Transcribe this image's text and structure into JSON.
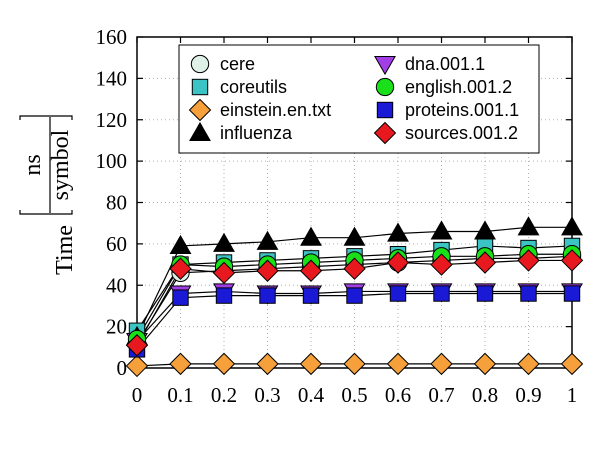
{
  "chart_data": {
    "type": "line",
    "title": "",
    "xlabel": "",
    "ylabel": {
      "prefix": "Time",
      "numerator": "ns",
      "denominator": "symbol"
    },
    "xlim": [
      0,
      1
    ],
    "ylim": [
      0,
      160
    ],
    "xticks": [
      "0",
      "0.1",
      "0.2",
      "0.3",
      "0.4",
      "0.5",
      "0.6",
      "0.7",
      "0.8",
      "0.9",
      "1"
    ],
    "yticks": [
      "0",
      "20",
      "40",
      "60",
      "80",
      "100",
      "120",
      "140",
      "160"
    ],
    "grid": true,
    "legend_position": "top",
    "x": [
      0,
      0.1,
      0.2,
      0.3,
      0.4,
      0.5,
      0.6,
      0.7,
      0.8,
      0.9,
      1
    ],
    "series": [
      {
        "name": "cere",
        "marker": "circle",
        "color": "#dff0e6",
        "values": [
          12,
          46,
          47,
          48,
          49,
          50,
          51,
          52,
          53,
          53,
          54
        ]
      },
      {
        "name": "coreutils",
        "marker": "square",
        "color": "#3cc4c4",
        "values": [
          18,
          50,
          51,
          52,
          53,
          54,
          55,
          57,
          59,
          58,
          59
        ]
      },
      {
        "name": "einstein.en.txt",
        "marker": "diamond",
        "color": "#f5a03a",
        "values": [
          1,
          2,
          2,
          2,
          2,
          2,
          2,
          2,
          2,
          2,
          2
        ]
      },
      {
        "name": "influenza",
        "marker": "triangle-up",
        "color": "#000000",
        "values": [
          15,
          59,
          60,
          61,
          63,
          63,
          65,
          66,
          66,
          68,
          68
        ]
      },
      {
        "name": "dna.001.1",
        "marker": "triangle-down",
        "color": "#a23ee6",
        "values": [
          13,
          36,
          37,
          36,
          36,
          37,
          37,
          37,
          37,
          37,
          37
        ]
      },
      {
        "name": "english.001.2",
        "marker": "circle",
        "color": "#19e019",
        "values": [
          14,
          50,
          49,
          50,
          51,
          52,
          53,
          54,
          54,
          55,
          55
        ]
      },
      {
        "name": "proteins.001.1",
        "marker": "square",
        "color": "#1a1ad6",
        "values": [
          9,
          34,
          35,
          35,
          35,
          35,
          36,
          36,
          36,
          36,
          36
        ]
      },
      {
        "name": "sources.001.2",
        "marker": "diamond",
        "color": "#e8191e",
        "values": [
          11,
          48,
          46,
          47,
          47,
          48,
          51,
          50,
          51,
          52,
          52
        ]
      }
    ]
  }
}
